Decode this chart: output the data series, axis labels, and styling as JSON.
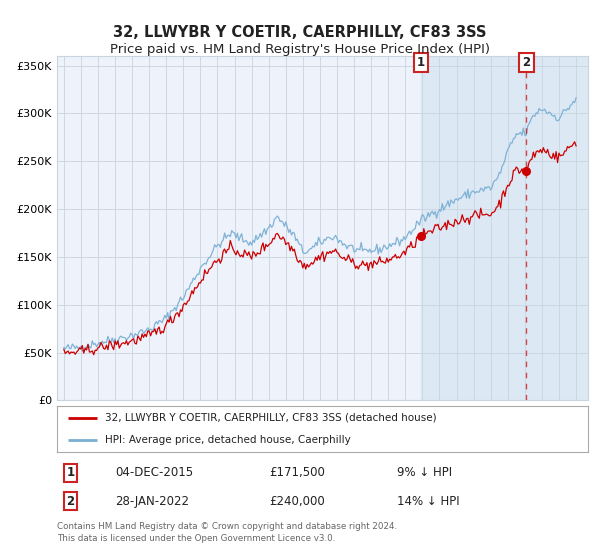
{
  "title": "32, LLWYBR Y COETIR, CAERPHILLY, CF83 3SS",
  "subtitle": "Price paid vs. HM Land Registry's House Price Index (HPI)",
  "ylim": [
    0,
    360000
  ],
  "yticks": [
    0,
    50000,
    100000,
    150000,
    200000,
    250000,
    300000,
    350000
  ],
  "ytick_labels": [
    "£0",
    "£50K",
    "£100K",
    "£150K",
    "£200K",
    "£250K",
    "£300K",
    "£350K"
  ],
  "line1_color": "#cc0000",
  "line2_color": "#7aafd4",
  "sale1_year": 2015.92,
  "sale1_price": 171500,
  "sale2_year": 2022.08,
  "sale2_price": 240000,
  "legend1_label": "32, LLWYBR Y COETIR, CAERPHILLY, CF83 3SS (detached house)",
  "legend2_label": "HPI: Average price, detached house, Caerphilly",
  "table_row1": [
    "1",
    "04-DEC-2015",
    "£171,500",
    "9% ↓ HPI"
  ],
  "table_row2": [
    "2",
    "28-JAN-2022",
    "£240,000",
    "14% ↓ HPI"
  ],
  "footer": "Contains HM Land Registry data © Crown copyright and database right 2024.\nThis data is licensed under the Open Government Licence v3.0.",
  "bg_color": "#ffffff",
  "plot_bg_color": "#eef2fa",
  "shade_color": "#dde8f5",
  "grid_color": "#c8d4e0",
  "title_fontsize": 10.5,
  "subtitle_fontsize": 9.5,
  "tick_fontsize": 8,
  "xstart_year": 1995,
  "xend_year": 2025
}
